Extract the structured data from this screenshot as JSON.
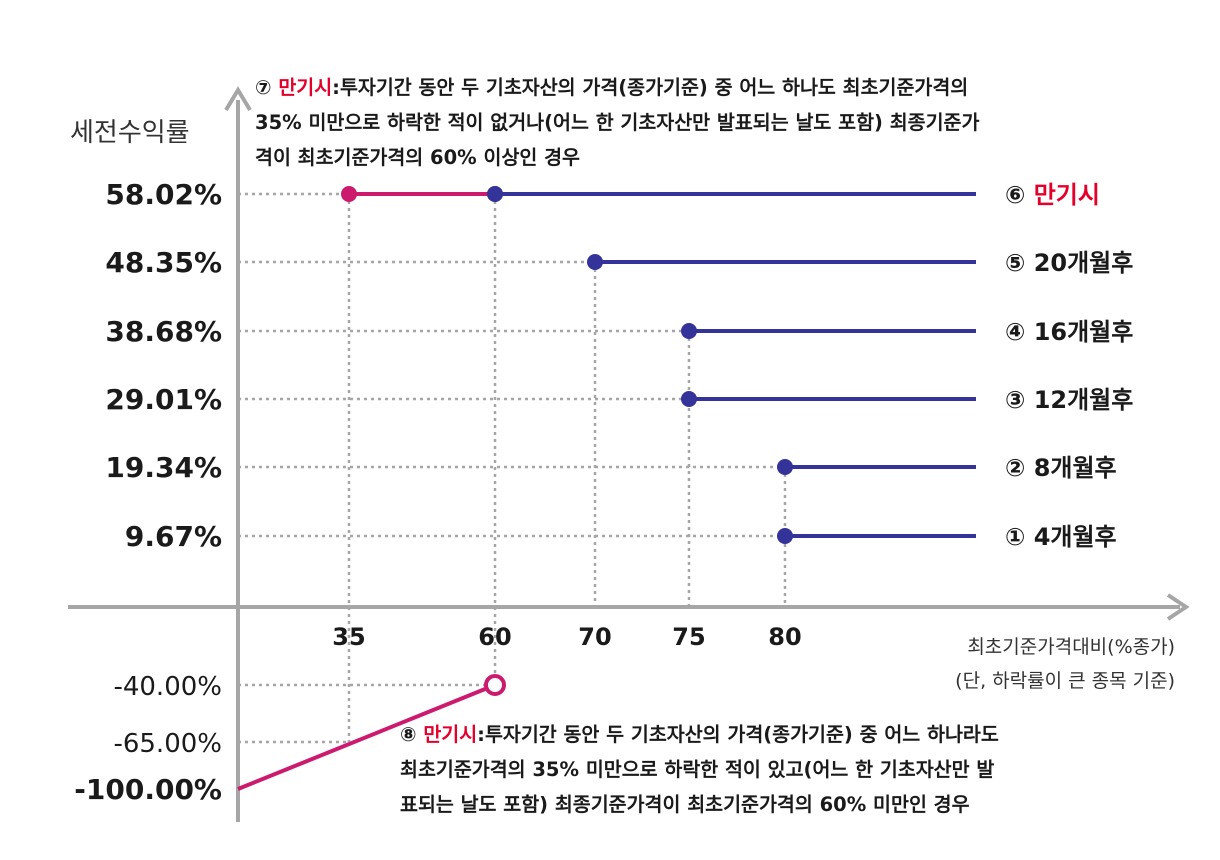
{
  "chart_data": {
    "type": "line",
    "ylabel": "세전수익률",
    "xlabel": "최초기준가격대비(%종가)",
    "xlabel_note": "(단, 하락률이 큰 종목 기준)",
    "x_ticks": [
      "35",
      "60",
      "70",
      "75",
      "80"
    ],
    "y_tick_labels": [
      "58.02%",
      "48.35%",
      "38.68%",
      "29.01%",
      "19.34%",
      "9.67%",
      "-40.00%",
      "-65.00%",
      "-100.00%"
    ],
    "series": [
      {
        "name": "⑥ 만기시",
        "label_num": "⑥",
        "label_text": "만기시",
        "x_start": 60,
        "value": "58.02%",
        "color": "#333399"
      },
      {
        "name": "⑤ 20개월후",
        "label_num": "⑤",
        "label_text": "20개월후",
        "x_start": 70,
        "value": "48.35%",
        "color": "#333399"
      },
      {
        "name": "④ 16개월후",
        "label_num": "④",
        "label_text": "16개월후",
        "x_start": 75,
        "value": "38.68%",
        "color": "#333399"
      },
      {
        "name": "③ 12개월후",
        "label_num": "③",
        "label_text": "12개월후",
        "x_start": 75,
        "value": "29.01%",
        "color": "#333399"
      },
      {
        "name": "② 8개월후",
        "label_num": "②",
        "label_text": "8개월후",
        "x_start": 80,
        "value": "19.34%",
        "color": "#333399"
      },
      {
        "name": "① 4개월후",
        "label_num": "①",
        "label_text": "4개월후",
        "x_start": 80,
        "value": "9.67%",
        "color": "#333399"
      },
      {
        "name": "⑦",
        "segment": [
          [
            35,
            "58.02%"
          ],
          [
            60,
            "58.02%"
          ]
        ],
        "color": "#cc1a6e"
      },
      {
        "name": "⑧",
        "segment": [
          [
            0,
            "-100.00%"
          ],
          [
            60,
            "-40.00%"
          ]
        ],
        "open_end": true,
        "color": "#cc1a6e"
      }
    ],
    "colors": {
      "blue": "#333399",
      "magenta": "#cc1a6e",
      "red_text": "#e4002b",
      "axis": "#a6a6a6",
      "grid": "#a6a6a6"
    }
  },
  "notes": {
    "note7": {
      "num": "⑦",
      "red": "만기시",
      "line1": ":투자기간 동안 두 기초자산의 가격(종가기준) 중 어느 하나도 최초기준가격의",
      "line2": "35% 미만으로 하락한 적이 없거나(어느 한 기초자산만 발표되는 날도 포함) 최종기준가",
      "line3": "격이 최초기준가격의 60% 이상인 경우"
    },
    "note8": {
      "num": "⑧",
      "red": "만기시",
      "line1": ":투자기간 동안 두 기초자산의 가격(종가기준) 중 어느 하나라도",
      "line2": "최초기준가격의 35% 미만으로 하락한 적이 있고(어느 한 기초자산만 발",
      "line3": "표되는 날도 포함) 최종기준가격이 최초기준가격의 60% 미만인 경우"
    }
  }
}
